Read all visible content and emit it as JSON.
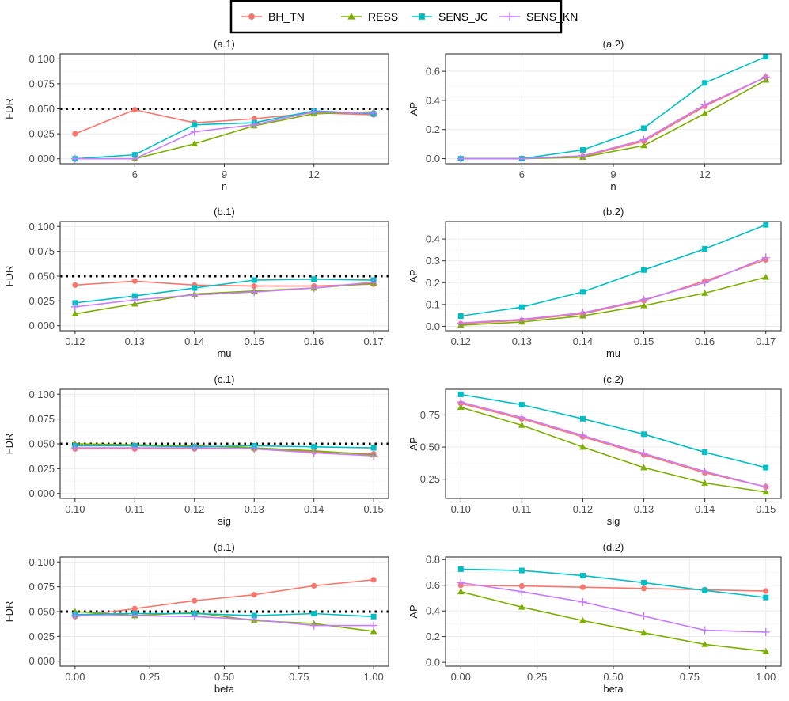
{
  "legend": {
    "items": [
      {
        "name": "BH_TN",
        "color": "#F8766D",
        "shape": "circle"
      },
      {
        "name": "RESS",
        "color": "#7CAE00",
        "shape": "triangle"
      },
      {
        "name": "SENS_JC",
        "color": "#00BFC4",
        "shape": "square"
      },
      {
        "name": "SENS_KN",
        "color": "#C77CFF",
        "shape": "plus"
      }
    ]
  },
  "chart_data": [
    {
      "title": "(a.1)",
      "type": "line",
      "xlabel": "n",
      "ylabel": "FDR",
      "x": [
        4,
        6,
        8,
        10,
        12,
        14
      ],
      "xlim": [
        3.5,
        14.5
      ],
      "xticks": [
        6,
        9,
        12
      ],
      "ylim": [
        -0.005,
        0.105
      ],
      "yticks": [
        0.0,
        0.025,
        0.05,
        0.075,
        0.1
      ],
      "reference_line": 0.05,
      "series": [
        {
          "name": "BH_TN",
          "values": [
            0.025,
            0.049,
            0.036,
            0.04,
            0.046,
            0.044
          ]
        },
        {
          "name": "RESS",
          "values": [
            0.0,
            0.0,
            0.015,
            0.033,
            0.045,
            0.047
          ]
        },
        {
          "name": "SENS_JC",
          "values": [
            0.0,
            0.004,
            0.034,
            0.036,
            0.048,
            0.045
          ]
        },
        {
          "name": "SENS_KN",
          "values": [
            0.0,
            0.0,
            0.027,
            0.034,
            0.047,
            0.046
          ]
        }
      ]
    },
    {
      "title": "(a.2)",
      "type": "line",
      "xlabel": "n",
      "ylabel": "AP",
      "x": [
        4,
        6,
        8,
        10,
        12,
        14
      ],
      "xlim": [
        3.5,
        14.5
      ],
      "xticks": [
        6,
        9,
        12
      ],
      "ylim": [
        -0.035,
        0.72
      ],
      "yticks": [
        0.0,
        0.2,
        0.4,
        0.6
      ],
      "series": [
        {
          "name": "BH_TN",
          "values": [
            0.0,
            0.0,
            0.015,
            0.12,
            0.36,
            0.56
          ]
        },
        {
          "name": "RESS",
          "values": [
            0.0,
            0.0,
            0.01,
            0.09,
            0.31,
            0.54
          ]
        },
        {
          "name": "SENS_JC",
          "values": [
            0.0,
            0.0,
            0.06,
            0.21,
            0.52,
            0.7
          ]
        },
        {
          "name": "SENS_KN",
          "values": [
            0.0,
            0.0,
            0.02,
            0.13,
            0.37,
            0.56
          ]
        }
      ]
    },
    {
      "title": "(b.1)",
      "type": "line",
      "xlabel": "mu",
      "ylabel": "FDR",
      "x": [
        0.12,
        0.13,
        0.14,
        0.15,
        0.16,
        0.17
      ],
      "xlim": [
        0.1175,
        0.1725
      ],
      "xticks": [
        0.12,
        0.13,
        0.14,
        0.15,
        0.16,
        0.17
      ],
      "ylim": [
        -0.005,
        0.105
      ],
      "yticks": [
        0.0,
        0.025,
        0.05,
        0.075,
        0.1
      ],
      "reference_line": 0.05,
      "series": [
        {
          "name": "BH_TN",
          "values": [
            0.041,
            0.045,
            0.041,
            0.04,
            0.04,
            0.042
          ]
        },
        {
          "name": "RESS",
          "values": [
            0.012,
            0.022,
            0.032,
            0.035,
            0.038,
            0.043
          ]
        },
        {
          "name": "SENS_JC",
          "values": [
            0.023,
            0.03,
            0.038,
            0.046,
            0.047,
            0.046
          ]
        },
        {
          "name": "SENS_KN",
          "values": [
            0.019,
            0.026,
            0.031,
            0.034,
            0.038,
            0.044
          ]
        }
      ]
    },
    {
      "title": "(b.2)",
      "type": "line",
      "xlabel": "mu",
      "ylabel": "AP",
      "x": [
        0.12,
        0.13,
        0.14,
        0.15,
        0.16,
        0.17
      ],
      "xlim": [
        0.1175,
        0.1725
      ],
      "xticks": [
        0.12,
        0.13,
        0.14,
        0.15,
        0.16,
        0.17
      ],
      "ylim": [
        -0.02,
        0.48
      ],
      "yticks": [
        0.0,
        0.1,
        0.2,
        0.3,
        0.4
      ],
      "series": [
        {
          "name": "BH_TN",
          "values": [
            0.012,
            0.028,
            0.058,
            0.118,
            0.208,
            0.305
          ]
        },
        {
          "name": "RESS",
          "values": [
            0.005,
            0.02,
            0.048,
            0.095,
            0.152,
            0.225
          ]
        },
        {
          "name": "SENS_JC",
          "values": [
            0.047,
            0.088,
            0.158,
            0.258,
            0.355,
            0.465
          ]
        },
        {
          "name": "SENS_KN",
          "values": [
            0.015,
            0.032,
            0.062,
            0.122,
            0.2,
            0.315
          ]
        }
      ]
    },
    {
      "title": "(c.1)",
      "type": "line",
      "xlabel": "sig",
      "ylabel": "FDR",
      "x": [
        0.1,
        0.11,
        0.12,
        0.13,
        0.14,
        0.15
      ],
      "xlim": [
        0.0975,
        0.1525
      ],
      "xticks": [
        0.1,
        0.11,
        0.12,
        0.13,
        0.14,
        0.15
      ],
      "ylim": [
        -0.005,
        0.105
      ],
      "yticks": [
        0.0,
        0.025,
        0.05,
        0.075,
        0.1
      ],
      "reference_line": 0.05,
      "series": [
        {
          "name": "BH_TN",
          "values": [
            0.045,
            0.045,
            0.045,
            0.045,
            0.042,
            0.04
          ]
        },
        {
          "name": "RESS",
          "values": [
            0.05,
            0.049,
            0.048,
            0.046,
            0.043,
            0.039
          ]
        },
        {
          "name": "SENS_JC",
          "values": [
            0.048,
            0.048,
            0.047,
            0.048,
            0.047,
            0.046
          ]
        },
        {
          "name": "SENS_KN",
          "values": [
            0.046,
            0.046,
            0.046,
            0.045,
            0.041,
            0.038
          ]
        }
      ]
    },
    {
      "title": "(c.2)",
      "type": "line",
      "xlabel": "sig",
      "ylabel": "AP",
      "x": [
        0.1,
        0.11,
        0.12,
        0.13,
        0.14,
        0.15
      ],
      "xlim": [
        0.0975,
        0.1525
      ],
      "xticks": [
        0.1,
        0.11,
        0.12,
        0.13,
        0.14,
        0.15
      ],
      "ylim": [
        0.1,
        0.95
      ],
      "yticks": [
        0.25,
        0.5,
        0.75
      ],
      "series": [
        {
          "name": "BH_TN",
          "values": [
            0.84,
            0.72,
            0.58,
            0.44,
            0.3,
            0.19
          ]
        },
        {
          "name": "RESS",
          "values": [
            0.81,
            0.67,
            0.5,
            0.34,
            0.22,
            0.15
          ]
        },
        {
          "name": "SENS_JC",
          "values": [
            0.91,
            0.83,
            0.72,
            0.6,
            0.46,
            0.34
          ]
        },
        {
          "name": "SENS_KN",
          "values": [
            0.85,
            0.73,
            0.59,
            0.45,
            0.31,
            0.19
          ]
        }
      ]
    },
    {
      "title": "(d.1)",
      "type": "line",
      "xlabel": "beta",
      "ylabel": "FDR",
      "x": [
        0.0,
        0.2,
        0.4,
        0.6,
        0.8,
        1.0
      ],
      "xlim": [
        -0.05,
        1.05
      ],
      "xticks": [
        0.0,
        0.25,
        0.5,
        0.75,
        1.0
      ],
      "xtick_labels": [
        "0.00",
        "0.25",
        "0.50",
        "0.75",
        "1.00"
      ],
      "ylim": [
        -0.005,
        0.105
      ],
      "yticks": [
        0.0,
        0.025,
        0.05,
        0.075,
        0.1
      ],
      "reference_line": 0.05,
      "series": [
        {
          "name": "BH_TN",
          "values": [
            0.045,
            0.053,
            0.061,
            0.067,
            0.076,
            0.082
          ]
        },
        {
          "name": "RESS",
          "values": [
            0.05,
            0.046,
            0.049,
            0.041,
            0.038,
            0.03
          ]
        },
        {
          "name": "SENS_JC",
          "values": [
            0.047,
            0.048,
            0.048,
            0.046,
            0.048,
            0.045
          ]
        },
        {
          "name": "SENS_KN",
          "values": [
            0.046,
            0.046,
            0.045,
            0.042,
            0.036,
            0.036
          ]
        }
      ]
    },
    {
      "title": "(d.2)",
      "type": "line",
      "xlabel": "beta",
      "ylabel": "AP",
      "x": [
        0.0,
        0.2,
        0.4,
        0.6,
        0.8,
        1.0
      ],
      "xlim": [
        -0.05,
        1.05
      ],
      "xticks": [
        0.0,
        0.25,
        0.5,
        0.75,
        1.0
      ],
      "xtick_labels": [
        "0.00",
        "0.25",
        "0.50",
        "0.75",
        "1.00"
      ],
      "ylim": [
        -0.03,
        0.82
      ],
      "yticks": [
        0.0,
        0.2,
        0.4,
        0.6,
        0.8
      ],
      "series": [
        {
          "name": "BH_TN",
          "values": [
            0.6,
            0.595,
            0.585,
            0.575,
            0.565,
            0.555
          ]
        },
        {
          "name": "RESS",
          "values": [
            0.55,
            0.43,
            0.325,
            0.23,
            0.14,
            0.085
          ]
        },
        {
          "name": "SENS_JC",
          "values": [
            0.725,
            0.715,
            0.675,
            0.62,
            0.56,
            0.505
          ]
        },
        {
          "name": "SENS_KN",
          "values": [
            0.62,
            0.55,
            0.47,
            0.36,
            0.25,
            0.235
          ]
        }
      ]
    }
  ]
}
